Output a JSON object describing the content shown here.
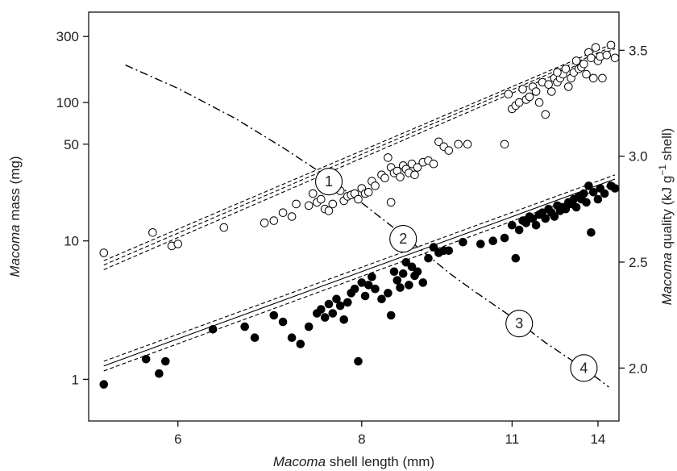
{
  "chart_data": {
    "type": "scatter",
    "title": "",
    "xlabel": "Macoma shell length (mm)",
    "ylabel": "Macoma mass (mg)",
    "y2label": "Macoma quality (kJ g⁻¹ shell)",
    "xlabel_parts": {
      "italic": "Macoma",
      "rest": " shell length (mm)"
    },
    "ylabel_parts": {
      "italic": "Macoma",
      "rest": " mass (mg)"
    },
    "y2label_parts": {
      "italic": "Macoma",
      "rest": " quality (kJ g",
      "sup": "−1",
      "tail": " shell)"
    },
    "x_scale": "reciprocal",
    "xlim": [
      5.35,
      15.0
    ],
    "x_ticks": [
      6,
      8,
      11,
      14
    ],
    "y_scale": "log",
    "ylim": [
      0.5,
      450
    ],
    "y_ticks": [
      1,
      10,
      50,
      100,
      300
    ],
    "y2lim": [
      1.75,
      3.68
    ],
    "y2_ticks": [
      2.0,
      2.5,
      3.0,
      3.5
    ],
    "y2_tick_labels": [
      "2.0",
      "2.5",
      "3.0",
      "3.5"
    ],
    "grid": false,
    "colors": {
      "open": "#ffffff",
      "filled": "#000000",
      "stroke": "#000000"
    },
    "series": [
      {
        "marker": "open-circle",
        "axis": "left",
        "points": [
          [
            5.45,
            8.2
          ],
          [
            5.8,
            11.5
          ],
          [
            5.95,
            9.2
          ],
          [
            6.0,
            9.5
          ],
          [
            6.4,
            12.5
          ],
          [
            6.8,
            13.5
          ],
          [
            6.9,
            14
          ],
          [
            7.0,
            16
          ],
          [
            7.1,
            15
          ],
          [
            7.15,
            18.5
          ],
          [
            7.3,
            18
          ],
          [
            7.35,
            22
          ],
          [
            7.4,
            19
          ],
          [
            7.45,
            20
          ],
          [
            7.5,
            17
          ],
          [
            7.55,
            16.5
          ],
          [
            7.6,
            18.5
          ],
          [
            7.7,
            23
          ],
          [
            7.75,
            19.5
          ],
          [
            7.8,
            21
          ],
          [
            7.85,
            21.5
          ],
          [
            7.9,
            22
          ],
          [
            7.95,
            20
          ],
          [
            8.0,
            24
          ],
          [
            8.05,
            22
          ],
          [
            8.1,
            22.5
          ],
          [
            8.15,
            27
          ],
          [
            8.2,
            25
          ],
          [
            8.3,
            30
          ],
          [
            8.35,
            28.5
          ],
          [
            8.4,
            40
          ],
          [
            8.45,
            34
          ],
          [
            8.5,
            31
          ],
          [
            8.55,
            32
          ],
          [
            8.6,
            29
          ],
          [
            8.65,
            35
          ],
          [
            8.7,
            33
          ],
          [
            8.75,
            31
          ],
          [
            8.8,
            36
          ],
          [
            8.85,
            30
          ],
          [
            8.9,
            34
          ],
          [
            9.0,
            37
          ],
          [
            9.1,
            38
          ],
          [
            9.2,
            36
          ],
          [
            9.3,
            52
          ],
          [
            9.4,
            48
          ],
          [
            9.5,
            45
          ],
          [
            9.7,
            50
          ],
          [
            9.9,
            50
          ],
          [
            10.8,
            50
          ],
          [
            10.9,
            115
          ],
          [
            11.0,
            90
          ],
          [
            11.1,
            95
          ],
          [
            11.2,
            100
          ],
          [
            11.3,
            125
          ],
          [
            11.4,
            105
          ],
          [
            11.5,
            110
          ],
          [
            11.6,
            130
          ],
          [
            11.7,
            120
          ],
          [
            11.8,
            100
          ],
          [
            11.9,
            140
          ],
          [
            12.0,
            82
          ],
          [
            12.1,
            135
          ],
          [
            12.2,
            120
          ],
          [
            12.3,
            150
          ],
          [
            12.4,
            140
          ],
          [
            12.5,
            150
          ],
          [
            12.6,
            160
          ],
          [
            12.7,
            175
          ],
          [
            12.8,
            130
          ],
          [
            12.9,
            150
          ],
          [
            13.0,
            165
          ],
          [
            13.1,
            200
          ],
          [
            13.2,
            175
          ],
          [
            13.3,
            180
          ],
          [
            13.4,
            190
          ],
          [
            13.5,
            160
          ],
          [
            13.6,
            230
          ],
          [
            13.7,
            210
          ],
          [
            13.8,
            150
          ],
          [
            13.9,
            250
          ],
          [
            14.0,
            200
          ],
          [
            14.1,
            215
          ],
          [
            14.2,
            150
          ],
          [
            14.4,
            220
          ],
          [
            14.6,
            260
          ],
          [
            14.8,
            210
          ],
          [
            8.45,
            19
          ],
          [
            7.55,
            26
          ],
          [
            12.4,
            165
          ]
        ]
      },
      {
        "marker": "filled-circle",
        "axis": "left",
        "points": [
          [
            5.45,
            0.92
          ],
          [
            5.75,
            1.4
          ],
          [
            5.85,
            1.1
          ],
          [
            5.9,
            1.35
          ],
          [
            6.3,
            2.3
          ],
          [
            6.6,
            2.4
          ],
          [
            6.7,
            2.0
          ],
          [
            6.9,
            2.9
          ],
          [
            7.0,
            2.6
          ],
          [
            7.1,
            2.0
          ],
          [
            7.2,
            1.8
          ],
          [
            7.3,
            2.4
          ],
          [
            7.4,
            3.0
          ],
          [
            7.45,
            3.2
          ],
          [
            7.5,
            2.8
          ],
          [
            7.55,
            3.5
          ],
          [
            7.6,
            3.0
          ],
          [
            7.65,
            3.8
          ],
          [
            7.7,
            3.4
          ],
          [
            7.75,
            2.7
          ],
          [
            7.8,
            3.6
          ],
          [
            7.85,
            4.2
          ],
          [
            7.9,
            4.5
          ],
          [
            7.95,
            1.35
          ],
          [
            8.0,
            5.0
          ],
          [
            8.05,
            4.0
          ],
          [
            8.1,
            4.8
          ],
          [
            8.15,
            5.5
          ],
          [
            8.2,
            4.5
          ],
          [
            8.3,
            3.8
          ],
          [
            8.4,
            4.2
          ],
          [
            8.45,
            2.9
          ],
          [
            8.5,
            6.0
          ],
          [
            8.55,
            5.2
          ],
          [
            8.6,
            4.6
          ],
          [
            8.65,
            5.8
          ],
          [
            8.7,
            7.0
          ],
          [
            8.75,
            4.8
          ],
          [
            8.8,
            6.5
          ],
          [
            8.85,
            5.6
          ],
          [
            8.9,
            6.0
          ],
          [
            9.0,
            5.0
          ],
          [
            9.1,
            7.5
          ],
          [
            9.2,
            9.0
          ],
          [
            9.3,
            8.2
          ],
          [
            9.4,
            8.5
          ],
          [
            9.5,
            8.5
          ],
          [
            9.8,
            9.8
          ],
          [
            10.2,
            9.5
          ],
          [
            10.5,
            10.0
          ],
          [
            10.8,
            10.5
          ],
          [
            11.0,
            13.0
          ],
          [
            11.1,
            7.5
          ],
          [
            11.2,
            12.0
          ],
          [
            11.3,
            14.0
          ],
          [
            11.4,
            13.5
          ],
          [
            11.5,
            15.0
          ],
          [
            11.6,
            14.5
          ],
          [
            11.7,
            13.0
          ],
          [
            11.8,
            15.5
          ],
          [
            11.9,
            16.0
          ],
          [
            12.0,
            14.5
          ],
          [
            12.1,
            17.0
          ],
          [
            12.2,
            16.0
          ],
          [
            12.3,
            15.0
          ],
          [
            12.4,
            18.0
          ],
          [
            12.5,
            16.5
          ],
          [
            12.6,
            17.5
          ],
          [
            12.7,
            17.0
          ],
          [
            12.8,
            19.0
          ],
          [
            12.9,
            18.5
          ],
          [
            13.0,
            20.0
          ],
          [
            13.1,
            17.5
          ],
          [
            13.2,
            21.0
          ],
          [
            13.3,
            20.0
          ],
          [
            13.4,
            22.0
          ],
          [
            13.5,
            19.0
          ],
          [
            13.6,
            25.0
          ],
          [
            13.7,
            11.5
          ],
          [
            13.8,
            22.5
          ],
          [
            14.0,
            20.0
          ],
          [
            14.1,
            24.0
          ],
          [
            14.3,
            22.0
          ],
          [
            14.6,
            25.0
          ],
          [
            14.8,
            24.0
          ]
        ]
      }
    ],
    "regression_lines": [
      {
        "axis": "left",
        "style": "dashed",
        "x": [
          5.45,
          14.8
        ],
        "y": [
          7.2,
          270
        ]
      },
      {
        "axis": "left",
        "style": "dashed",
        "x": [
          5.45,
          14.8
        ],
        "y": [
          6.2,
          245
        ]
      },
      {
        "axis": "left",
        "style": "dashed",
        "x": [
          5.45,
          14.8
        ],
        "y": [
          6.7,
          258
        ]
      },
      {
        "axis": "left",
        "style": "solid",
        "x": [
          5.45,
          14.8
        ],
        "y": [
          1.25,
          28
        ]
      },
      {
        "axis": "left",
        "style": "dashed",
        "x": [
          5.45,
          14.8
        ],
        "y": [
          1.35,
          30
        ]
      },
      {
        "axis": "left",
        "style": "dashed",
        "x": [
          5.45,
          14.8
        ],
        "y": [
          1.15,
          26
        ]
      }
    ],
    "quality_curve": {
      "axis": "right",
      "style": "dash-dot",
      "x": [
        5.6,
        6.0,
        6.5,
        7.0,
        7.5,
        8.0,
        8.5,
        9.0,
        9.5,
        10.0,
        11.0,
        12.0,
        13.0,
        14.0,
        14.5
      ],
      "y": [
        3.43,
        3.32,
        3.18,
        3.04,
        2.91,
        2.78,
        2.66,
        2.55,
        2.45,
        2.37,
        2.24,
        2.12,
        2.03,
        1.95,
        1.91
      ]
    },
    "annotations": [
      {
        "text": "1",
        "x": 7.55,
        "y2": 2.88
      },
      {
        "text": "2",
        "x": 8.65,
        "y2": 2.61
      },
      {
        "text": "3",
        "x": 11.2,
        "y2": 2.21
      },
      {
        "text": "4",
        "x": 13.4,
        "y2": 2.0
      }
    ]
  }
}
